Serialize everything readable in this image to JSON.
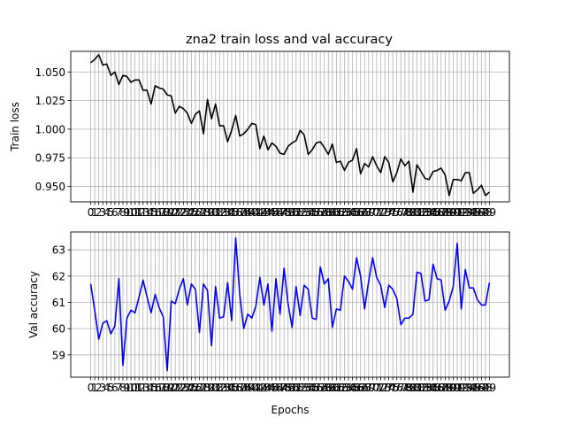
{
  "figure_title": "zna2 train loss and val accuracy",
  "chart_data": [
    {
      "type": "line",
      "title": "zna2 train loss and val accuracy",
      "xlabel": "",
      "ylabel": "Train loss",
      "x": [
        0,
        1,
        2,
        3,
        4,
        5,
        6,
        7,
        8,
        9,
        10,
        11,
        12,
        13,
        14,
        15,
        16,
        17,
        18,
        19,
        20,
        21,
        22,
        23,
        24,
        25,
        26,
        27,
        28,
        29,
        30,
        31,
        32,
        33,
        34,
        35,
        36,
        37,
        38,
        39,
        40,
        41,
        42,
        43,
        44,
        45,
        46,
        47,
        48,
        49,
        50,
        51,
        52,
        53,
        54,
        55,
        56,
        57,
        58,
        59,
        60,
        61,
        62,
        63,
        64,
        65,
        66,
        67,
        68,
        69,
        70,
        71,
        72,
        73,
        74,
        75,
        76,
        77,
        78,
        79,
        80,
        81,
        82,
        83,
        84,
        85,
        86,
        87,
        88,
        89,
        90,
        91,
        92,
        93,
        94,
        95,
        96,
        97,
        98,
        99
      ],
      "xticks": [
        "0",
        "1",
        "2",
        "3",
        "4",
        "5",
        "6",
        "7",
        "8",
        "9",
        "10",
        "11",
        "12",
        "13",
        "14",
        "15",
        "16",
        "17",
        "18",
        "19",
        "20",
        "21",
        "22",
        "23",
        "24",
        "25",
        "26",
        "27",
        "28",
        "29",
        "30",
        "31",
        "32",
        "33",
        "34",
        "35",
        "36",
        "37",
        "38",
        "39",
        "40",
        "41",
        "42",
        "43",
        "44",
        "45",
        "46",
        "47",
        "48",
        "49",
        "50",
        "51",
        "52",
        "53",
        "54",
        "55",
        "56",
        "57",
        "58",
        "59",
        "60",
        "61",
        "62",
        "63",
        "64",
        "65",
        "66",
        "67",
        "68",
        "69",
        "70",
        "71",
        "72",
        "73",
        "74",
        "75",
        "76",
        "77",
        "78",
        "79",
        "80",
        "81",
        "82",
        "83",
        "84",
        "85",
        "86",
        "87",
        "88",
        "89",
        "90",
        "91",
        "92",
        "93",
        "94",
        "95",
        "96",
        "97",
        "98",
        "99"
      ],
      "yticks": [
        "0.950",
        "0.975",
        "1.000",
        "1.025",
        "1.050"
      ],
      "ytick_values": [
        0.95,
        0.975,
        1.0,
        1.025,
        1.05
      ],
      "ylim": [
        0.9365,
        1.068
      ],
      "xlim": [
        -4.95,
        103.95
      ],
      "grid": true,
      "color": "#000000",
      "series": [
        {
          "values": [
            1.058,
            1.061,
            1.065,
            1.056,
            1.057,
            1.047,
            1.05,
            1.039,
            1.047,
            1.046,
            1.041,
            1.043,
            1.043,
            1.034,
            1.034,
            1.022,
            1.038,
            1.036,
            1.035,
            1.03,
            1.029,
            1.014,
            1.02,
            1.018,
            1.014,
            1.005,
            1.013,
            1.016,
            0.996,
            1.026,
            1.009,
            1.022,
            1.003,
            1.003,
            0.989,
            0.999,
            1.012,
            0.994,
            0.996,
            1.0,
            1.005,
            1.004,
            0.983,
            0.994,
            0.982,
            0.988,
            0.985,
            0.979,
            0.978,
            0.985,
            0.988,
            0.99,
            0.999,
            0.995,
            0.978,
            0.982,
            0.988,
            0.989,
            0.984,
            0.978,
            0.987,
            0.971,
            0.972,
            0.964,
            0.971,
            0.973,
            0.983,
            0.961,
            0.97,
            0.967,
            0.976,
            0.968,
            0.962,
            0.976,
            0.971,
            0.954,
            0.962,
            0.974,
            0.968,
            0.972,
            0.945,
            0.969,
            0.963,
            0.957,
            0.956,
            0.963,
            0.964,
            0.966,
            0.96,
            0.942,
            0.956,
            0.956,
            0.955,
            0.962,
            0.962,
            0.944,
            0.947,
            0.951,
            0.942,
            0.945
          ]
        }
      ]
    },
    {
      "type": "line",
      "title": "",
      "xlabel": "Epochs",
      "ylabel": "Val accuracy",
      "x": [
        0,
        1,
        2,
        3,
        4,
        5,
        6,
        7,
        8,
        9,
        10,
        11,
        12,
        13,
        14,
        15,
        16,
        17,
        18,
        19,
        20,
        21,
        22,
        23,
        24,
        25,
        26,
        27,
        28,
        29,
        30,
        31,
        32,
        33,
        34,
        35,
        36,
        37,
        38,
        39,
        40,
        41,
        42,
        43,
        44,
        45,
        46,
        47,
        48,
        49,
        50,
        51,
        52,
        53,
        54,
        55,
        56,
        57,
        58,
        59,
        60,
        61,
        62,
        63,
        64,
        65,
        66,
        67,
        68,
        69,
        70,
        71,
        72,
        73,
        74,
        75,
        76,
        77,
        78,
        79,
        80,
        81,
        82,
        83,
        84,
        85,
        86,
        87,
        88,
        89,
        90,
        91,
        92,
        93,
        94,
        95,
        96,
        97,
        98,
        99
      ],
      "xticks": [
        "0",
        "1",
        "2",
        "3",
        "4",
        "5",
        "6",
        "7",
        "8",
        "9",
        "10",
        "11",
        "12",
        "13",
        "14",
        "15",
        "16",
        "17",
        "18",
        "19",
        "20",
        "21",
        "22",
        "23",
        "24",
        "25",
        "26",
        "27",
        "28",
        "29",
        "30",
        "31",
        "32",
        "33",
        "34",
        "35",
        "36",
        "37",
        "38",
        "39",
        "40",
        "41",
        "42",
        "43",
        "44",
        "45",
        "46",
        "47",
        "48",
        "49",
        "50",
        "51",
        "52",
        "53",
        "54",
        "55",
        "56",
        "57",
        "58",
        "59",
        "60",
        "61",
        "62",
        "63",
        "64",
        "65",
        "66",
        "67",
        "68",
        "69",
        "70",
        "71",
        "72",
        "73",
        "74",
        "75",
        "76",
        "77",
        "78",
        "79",
        "80",
        "81",
        "82",
        "83",
        "84",
        "85",
        "86",
        "87",
        "88",
        "89",
        "90",
        "91",
        "92",
        "93",
        "94",
        "95",
        "96",
        "97",
        "98",
        "99"
      ],
      "yticks": [
        "59",
        "60",
        "61",
        "62",
        "63"
      ],
      "ytick_values": [
        59,
        60,
        61,
        62,
        63
      ],
      "ylim": [
        58.15,
        63.68
      ],
      "xlim": [
        -4.95,
        103.95
      ],
      "grid": true,
      "color": "#0000ff",
      "series": [
        {
          "values": [
            61.7,
            60.7,
            59.6,
            60.2,
            60.3,
            59.8,
            60.1,
            61.9,
            58.6,
            60.4,
            60.7,
            60.6,
            61.2,
            61.85,
            61.2,
            60.6,
            61.3,
            60.8,
            60.45,
            58.4,
            61.05,
            60.95,
            61.5,
            61.9,
            60.9,
            61.7,
            61.5,
            59.85,
            61.7,
            61.45,
            59.35,
            61.6,
            60.4,
            60.45,
            61.75,
            60.3,
            63.45,
            61.3,
            60.0,
            60.55,
            60.4,
            60.85,
            61.95,
            60.9,
            61.7,
            59.9,
            61.9,
            60.55,
            62.3,
            60.95,
            60.05,
            61.6,
            60.5,
            61.65,
            61.5,
            60.4,
            60.35,
            62.35,
            61.7,
            61.9,
            60.05,
            60.75,
            60.7,
            62.0,
            61.8,
            61.5,
            62.7,
            62.0,
            60.75,
            61.8,
            62.7,
            61.95,
            61.65,
            60.8,
            61.65,
            61.5,
            61.15,
            60.15,
            60.4,
            60.4,
            60.55,
            62.15,
            62.1,
            61.05,
            61.1,
            62.45,
            61.9,
            61.85,
            60.7,
            61.05,
            61.6,
            63.25,
            60.75,
            62.25,
            61.55,
            61.55,
            61.1,
            60.9,
            60.9,
            61.75
          ]
        }
      ]
    }
  ]
}
